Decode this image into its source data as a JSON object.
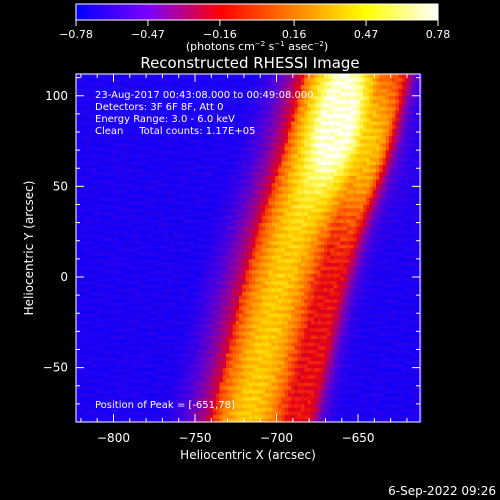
{
  "chart_data": {
    "type": "heatmap",
    "title": "Reconstructed RHESSI Image",
    "xlabel": "Heliocentric X (arcsec)",
    "ylabel": "Heliocentric Y (arcsec)",
    "xlim": [
      -823,
      -612
    ],
    "ylim": [
      -80,
      112
    ],
    "xticks": [
      -800,
      -750,
      -700,
      -650
    ],
    "yticks": [
      -50,
      0,
      50,
      100
    ],
    "colorbar": {
      "label_parts": [
        "(photons cm",
        "−2",
        " s",
        "−1",
        " asec",
        "−2",
        ")"
      ],
      "ticks": [
        -0.78,
        -0.47,
        -0.16,
        0.16,
        0.47,
        0.78
      ],
      "tick_labels": [
        "−0.78",
        "−0.47",
        "−0.16",
        "0.16",
        "0.47",
        "0.78"
      ],
      "range": [
        -0.78,
        0.78
      ],
      "colors": [
        "#0000ff",
        "#7a00ff",
        "#ff0000",
        "#ff8000",
        "#ffff00",
        "#ffffff"
      ]
    },
    "annotations": [
      "23-Aug-2017 00:43:08.000 to 00:49:08.000",
      "Detectors: 3F 6F 8F, Att 0",
      "Energy Range: 3.0 - 6.0 keV",
      "Clean     Total counts: 1.17E+05"
    ],
    "peak_label": "Position of Peak = [-651,78]",
    "peak": [
      -651,
      78
    ],
    "ridge": [
      [
        -718,
        -80
      ],
      [
        -710,
        -50
      ],
      [
        -700,
        -10
      ],
      [
        -688,
        30
      ],
      [
        -673,
        70
      ],
      [
        -660,
        112
      ]
    ],
    "band_width_arcsec": 26
  },
  "footer": {
    "date": "6-Sep-2022 09:26"
  }
}
